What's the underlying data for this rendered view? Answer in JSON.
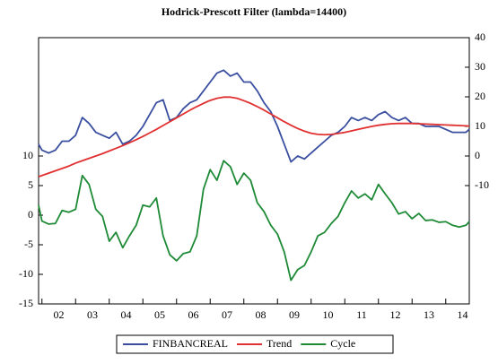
{
  "chart_data": {
    "type": "line",
    "title": "Hodrick-Prescott Filter (lambda=14400)",
    "x": [
      2001.9,
      2002.0,
      2002.2,
      2002.4,
      2002.6,
      2002.8,
      2003.0,
      2003.2,
      2003.4,
      2003.6,
      2003.8,
      2004.0,
      2004.2,
      2004.4,
      2004.6,
      2004.8,
      2005.0,
      2005.2,
      2005.4,
      2005.6,
      2005.8,
      2006.0,
      2006.2,
      2006.4,
      2006.6,
      2006.8,
      2007.0,
      2007.2,
      2007.4,
      2007.6,
      2007.8,
      2008.0,
      2008.2,
      2008.4,
      2008.6,
      2008.8,
      2009.0,
      2009.2,
      2009.4,
      2009.6,
      2009.8,
      2010.0,
      2010.2,
      2010.4,
      2010.6,
      2010.8,
      2011.0,
      2011.2,
      2011.4,
      2011.6,
      2011.8,
      2012.0,
      2012.2,
      2012.4,
      2012.6,
      2012.8,
      2013.0,
      2013.2,
      2013.4,
      2013.6,
      2013.8,
      2014.0,
      2014.2,
      2014.4,
      2014.6,
      2014.7
    ],
    "series": [
      {
        "name": "FINBANCREAL",
        "color": "#3a4fa0",
        "axis": "y2",
        "values": [
          4,
          2,
          1,
          2,
          5,
          5,
          7,
          13,
          11,
          8,
          7,
          6,
          8,
          4,
          5,
          7,
          10,
          14,
          18,
          19,
          12,
          13,
          16,
          18,
          19,
          22,
          25,
          28,
          29,
          27,
          28,
          25,
          25,
          22,
          18,
          15,
          10,
          4,
          -2,
          0,
          -1,
          1,
          3,
          5,
          7,
          8,
          10,
          13,
          12,
          13,
          12,
          14,
          15,
          13,
          12,
          13,
          11,
          11,
          10,
          10,
          10,
          9,
          8,
          8,
          8,
          9
        ]
      },
      {
        "name": "Trend",
        "color": "#e03030",
        "axis": "y2",
        "values": [
          -7,
          -6.6,
          -5.8,
          -5,
          -4.2,
          -3.4,
          -2.4,
          -1.6,
          -0.8,
          0,
          0.8,
          1.7,
          2.6,
          3.5,
          4.5,
          5.5,
          6.6,
          7.8,
          9,
          10.3,
          11.6,
          12.9,
          14.2,
          15.5,
          16.7,
          17.8,
          18.8,
          19.5,
          19.9,
          19.9,
          19.5,
          18.7,
          17.8,
          16.7,
          15.5,
          14.2,
          12.9,
          11.6,
          10.4,
          9.3,
          8.4,
          7.7,
          7.3,
          7.2,
          7.3,
          7.6,
          8,
          8.5,
          9,
          9.5,
          10,
          10.4,
          10.7,
          10.9,
          11,
          11,
          11,
          10.9,
          10.8,
          10.7,
          10.6,
          10.5,
          10.4,
          10.3,
          10.2,
          10.1
        ]
      },
      {
        "name": "Cycle",
        "color": "#1e8a36",
        "values": [
          1.7,
          -1,
          -1.5,
          -1.4,
          0.8,
          0.5,
          1,
          6.7,
          5.2,
          1,
          -0.2,
          -4.4,
          -2.9,
          -5.5,
          -3.5,
          -1.7,
          1.7,
          1.4,
          2.9,
          -3.5,
          -6.7,
          -7.7,
          -6.5,
          -6.2,
          -3.5,
          4.4,
          7.7,
          5.9,
          9.2,
          8.2,
          5.2,
          7.1,
          5.9,
          2.1,
          0.6,
          -1.7,
          -3.2,
          -6.2,
          -11,
          -9.2,
          -8.5,
          -6.2,
          -3.5,
          -2.9,
          -1.4,
          -0.2,
          2.1,
          4.1,
          2.9,
          3.6,
          2.6,
          5.2,
          3.6,
          2.1,
          0.2,
          0.6,
          -0.6,
          0.3,
          -0.9,
          -0.8,
          -1.2,
          -1.1,
          -1.7,
          -2,
          -1.7,
          -1.1
        ]
      }
    ],
    "xlim": [
      2001.9,
      2014.7
    ],
    "xticks": [
      {
        "value": 2002,
        "label": "02"
      },
      {
        "value": 2003,
        "label": "03"
      },
      {
        "value": 2004,
        "label": "04"
      },
      {
        "value": 2005,
        "label": "05"
      },
      {
        "value": 2006,
        "label": "06"
      },
      {
        "value": 2007,
        "label": "07"
      },
      {
        "value": 2008,
        "label": "08"
      },
      {
        "value": 2009,
        "label": "09"
      },
      {
        "value": 2010,
        "label": "10"
      },
      {
        "value": 2011,
        "label": "11"
      },
      {
        "value": 2012,
        "label": "12"
      },
      {
        "value": 2013,
        "label": "13"
      },
      {
        "value": 2014,
        "label": "14"
      }
    ],
    "ylim": [
      -15,
      30
    ],
    "yticks": [
      -15,
      -10,
      -5,
      0,
      5,
      10
    ],
    "y2lim": [
      -50,
      40
    ],
    "y2ticks": [
      -10,
      0,
      10,
      20,
      30,
      40
    ],
    "legend": "bottom"
  }
}
